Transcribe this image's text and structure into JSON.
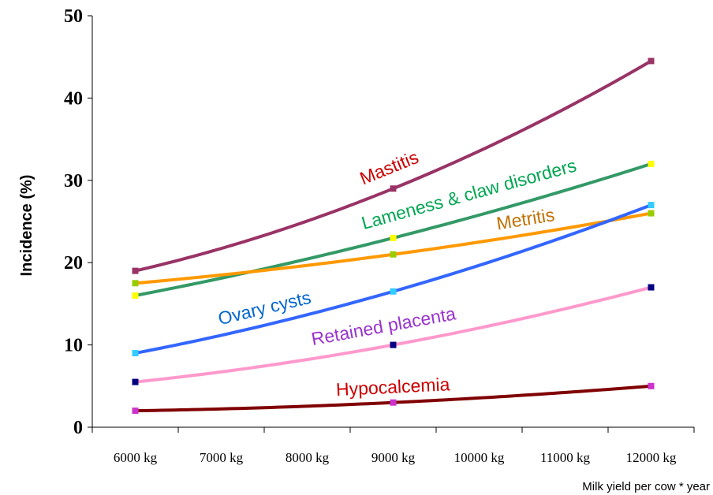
{
  "chart_data": {
    "type": "line",
    "title": "",
    "xlabel": "Milk yield per cow * year",
    "ylabel": "Incidence (%)",
    "categories": [
      "6000 kg",
      "7000 kg",
      "8000 kg",
      "9000 kg",
      "10000 kg",
      "11000 kg",
      "12000 kg"
    ],
    "x_range": [
      5500,
      12500
    ],
    "ylim": [
      0,
      50
    ],
    "yticks": [
      0,
      10,
      20,
      30,
      40,
      50
    ],
    "grid": false,
    "legend": "labels-on-lines",
    "series": [
      {
        "name": "Mastitis",
        "color": "#993366",
        "label_color": "#cc0000",
        "marker_color": "#993366",
        "x": [
          6000,
          9000,
          12000
        ],
        "y": [
          19,
          29,
          44.5
        ]
      },
      {
        "name": "Lameness & claw disorders",
        "color": "#339966",
        "label_color": "#00a651",
        "marker_color": "#ffff00",
        "x": [
          6000,
          9000,
          12000
        ],
        "y": [
          16,
          23,
          32
        ]
      },
      {
        "name": "Metritis",
        "color": "#ff9900",
        "label_color": "#c07000",
        "marker_color": "#99cc00",
        "x": [
          6000,
          9000,
          12000
        ],
        "y": [
          17.5,
          21,
          26
        ]
      },
      {
        "name": "Ovary cysts",
        "color": "#3366ff",
        "label_color": "#0066cc",
        "marker_color": "#33ccff",
        "x": [
          6000,
          9000,
          12000
        ],
        "y": [
          9,
          16.5,
          27
        ]
      },
      {
        "name": "Retained placenta",
        "color": "#ff99cc",
        "label_color": "#9933cc",
        "marker_color": "#000080",
        "x": [
          6000,
          9000,
          12000
        ],
        "y": [
          5.5,
          10,
          17
        ]
      },
      {
        "name": "Hypocalcemia",
        "color": "#800000",
        "label_color": "#cc0000",
        "marker_color": "#cc33cc",
        "x": [
          6000,
          9000,
          12000
        ],
        "y": [
          2,
          3,
          5
        ]
      }
    ]
  }
}
